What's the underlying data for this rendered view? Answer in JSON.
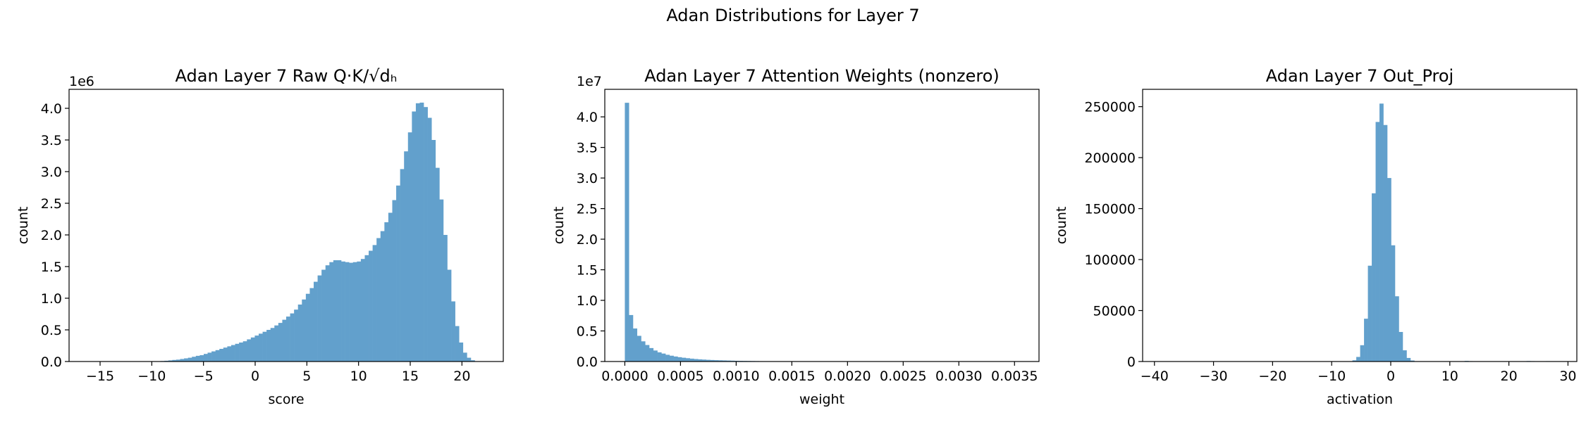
{
  "figure": {
    "suptitle": "Adan Distributions for Layer 7"
  },
  "style": {
    "bar_color": "#62a0cc",
    "axis_color": "#000000"
  },
  "chart_data": [
    {
      "type": "bar",
      "title": "Adan Layer 7 Raw Q·K/√dₕ",
      "xlabel": "score",
      "ylabel": "count",
      "offset_text": "1e6",
      "xlim": [
        -18,
        24
      ],
      "ylim": [
        0,
        4.3
      ],
      "x_ticks": [
        -15,
        -10,
        -5,
        0,
        5,
        10,
        15,
        20
      ],
      "x_tick_labels": [
        "−15",
        "−10",
        "−5",
        "0",
        "5",
        "10",
        "15",
        "20"
      ],
      "y_ticks": [
        0,
        0.5,
        1,
        1.5,
        2,
        2.5,
        3,
        3.5,
        4
      ],
      "y_tick_labels": [
        "0.0",
        "0.5",
        "1.0",
        "1.5",
        "2.0",
        "2.5",
        "3.0",
        "3.5",
        "4.0"
      ],
      "bin_start": -16,
      "bin_width": 0.38,
      "values": [
        0,
        0,
        0,
        0,
        0,
        0,
        0,
        0,
        0,
        0,
        0,
        0,
        0,
        0,
        0,
        0,
        0,
        0.005,
        0.008,
        0.012,
        0.018,
        0.025,
        0.03,
        0.04,
        0.05,
        0.06,
        0.075,
        0.09,
        0.1,
        0.12,
        0.14,
        0.16,
        0.18,
        0.2,
        0.22,
        0.24,
        0.26,
        0.28,
        0.3,
        0.32,
        0.35,
        0.38,
        0.41,
        0.44,
        0.47,
        0.5,
        0.53,
        0.57,
        0.61,
        0.66,
        0.71,
        0.76,
        0.82,
        0.9,
        0.98,
        1.07,
        1.16,
        1.26,
        1.36,
        1.45,
        1.52,
        1.57,
        1.6,
        1.6,
        1.58,
        1.57,
        1.56,
        1.57,
        1.58,
        1.62,
        1.68,
        1.75,
        1.84,
        1.95,
        2.06,
        2.2,
        2.35,
        2.55,
        2.78,
        3.04,
        3.32,
        3.62,
        3.95,
        4.08,
        4.09,
        4.02,
        3.85,
        3.5,
        3.06,
        2.56,
        2.0,
        1.45,
        0.95,
        0.56,
        0.3,
        0.14,
        0.06,
        0.02,
        0,
        0
      ]
    },
    {
      "type": "bar",
      "title": "Adan Layer 7 Attention Weights (nonzero)",
      "xlabel": "weight",
      "ylabel": "count",
      "offset_text": "1e7",
      "xlim": [
        -0.00018,
        0.00372
      ],
      "ylim": [
        0,
        4.45
      ],
      "x_ticks": [
        0,
        0.0005,
        0.001,
        0.0015,
        0.002,
        0.0025,
        0.003,
        0.0035
      ],
      "x_tick_labels": [
        "0.0000",
        "0.0005",
        "0.0010",
        "0.0015",
        "0.0020",
        "0.0025",
        "0.0030",
        "0.0035"
      ],
      "y_ticks": [
        0,
        0.5,
        1,
        1.5,
        2,
        2.5,
        3,
        3.5,
        4
      ],
      "y_tick_labels": [
        "0.0",
        "0.5",
        "1.0",
        "1.5",
        "2.0",
        "2.5",
        "3.0",
        "3.5",
        "4.0"
      ],
      "bin_start": 0,
      "bin_width": 3.65e-05,
      "values": [
        4.23,
        0.76,
        0.54,
        0.42,
        0.33,
        0.27,
        0.22,
        0.18,
        0.15,
        0.13,
        0.11,
        0.095,
        0.082,
        0.071,
        0.062,
        0.054,
        0.047,
        0.041,
        0.036,
        0.032,
        0.028,
        0.025,
        0.022,
        0.02,
        0.018,
        0.016,
        0.014,
        0.012,
        0.011,
        0.01,
        0.009,
        0.008,
        0.007,
        0.006,
        0.0055,
        0.005,
        0.0045,
        0.004,
        0.0036,
        0.0032,
        0.0028,
        0.0025,
        0.0022,
        0.002,
        0.0018,
        0.0016,
        0.0014,
        0.0012,
        0.001,
        0.0009,
        0.0008,
        0.0007,
        0.0006,
        0.0005,
        0.0004,
        0.0003,
        0.0003,
        0.0002,
        0.0002,
        0.0001
      ]
    },
    {
      "type": "bar",
      "title": "Adan Layer 7 Out_Proj",
      "xlabel": "activation",
      "ylabel": "count",
      "offset_text": "",
      "xlim": [
        -42,
        31.5
      ],
      "ylim": [
        0,
        267000
      ],
      "x_ticks": [
        -40,
        -30,
        -20,
        -10,
        0,
        10,
        20,
        30
      ],
      "x_tick_labels": [
        "−40",
        "−30",
        "−20",
        "−10",
        "0",
        "10",
        "20",
        "30"
      ],
      "y_ticks": [
        0,
        50000,
        100000,
        150000,
        200000,
        250000
      ],
      "y_tick_labels": [
        "0",
        "50000",
        "100000",
        "150000",
        "200000",
        "250000"
      ],
      "bin_start": -7.8,
      "bin_width": 0.655,
      "values": [
        0,
        300,
        1200,
        4500,
        16000,
        42000,
        94000,
        165000,
        235000,
        253000,
        232000,
        180000,
        114000,
        64000,
        29000,
        11000,
        3500,
        1000,
        300,
        100,
        0,
        0,
        0,
        0,
        0,
        0,
        0,
        0,
        0,
        0,
        300,
        600,
        400,
        0,
        0,
        0,
        0,
        0,
        0,
        0,
        0,
        0,
        0,
        0,
        0,
        0,
        300,
        500,
        400,
        200,
        0,
        300,
        400,
        0,
        0,
        0
      ]
    }
  ]
}
